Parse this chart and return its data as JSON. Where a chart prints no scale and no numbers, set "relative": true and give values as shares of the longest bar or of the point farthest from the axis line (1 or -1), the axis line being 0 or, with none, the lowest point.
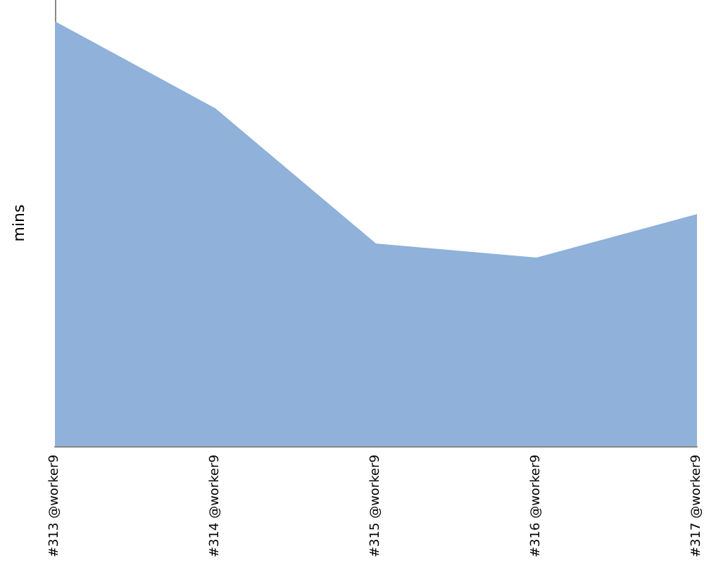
{
  "chart_data": {
    "type": "area",
    "ylabel": "mins",
    "relative": true,
    "categories": [
      "#313 @worker9",
      "#314 @worker9",
      "#315 @worker9",
      "#316 @worker9",
      "#317 @worker9"
    ],
    "series": [
      {
        "color": "#8fb1da",
        "values": [
          1,
          0.795,
          0.477,
          0.444,
          0.546
        ]
      }
    ]
  }
}
